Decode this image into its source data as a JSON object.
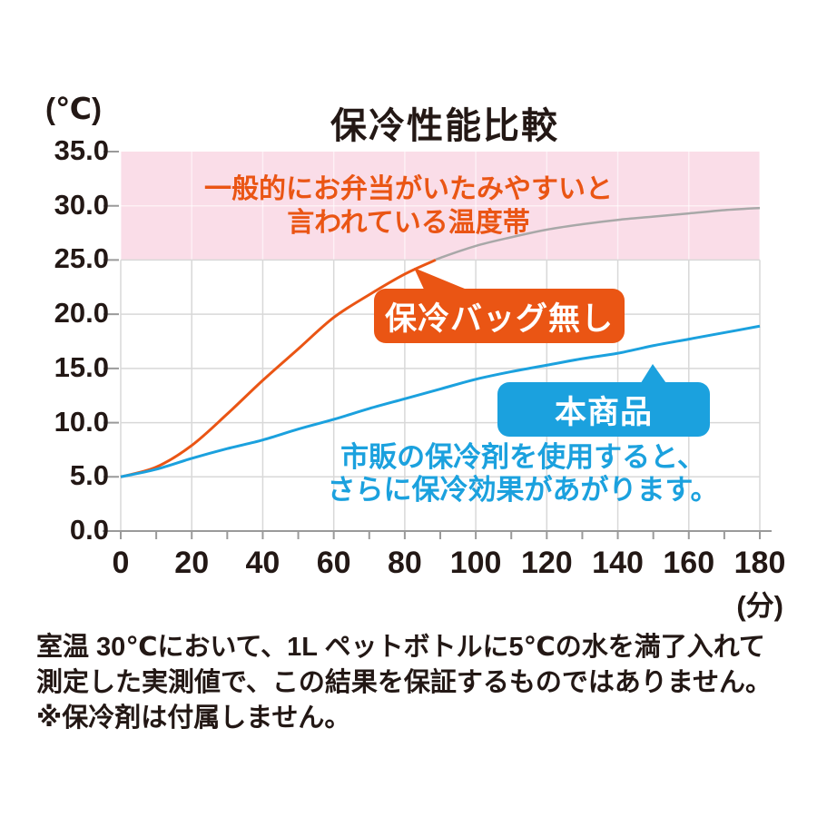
{
  "header": {
    "title": "保冷性能比較",
    "y_axis_unit": "(℃)",
    "x_axis_unit": "(分)"
  },
  "chart_data": {
    "type": "line",
    "title": "保冷性能比較",
    "xlabel": "(分)",
    "ylabel": "(℃)",
    "xlim": [
      0,
      180
    ],
    "ylim": [
      0,
      35
    ],
    "grid": true,
    "x": [
      0,
      10,
      20,
      30,
      40,
      50,
      60,
      70,
      80,
      90,
      100,
      110,
      120,
      130,
      140,
      150,
      160,
      170,
      180
    ],
    "x_tick_labels": [
      "0",
      "20",
      "40",
      "60",
      "80",
      "100",
      "120",
      "140",
      "160",
      "180"
    ],
    "x_tick_values": [
      0,
      20,
      40,
      60,
      80,
      100,
      120,
      140,
      160,
      180
    ],
    "y_tick_labels": [
      "0.0",
      "5.0",
      "10.0",
      "15.0",
      "20.0",
      "25.0",
      "30.0",
      "35.0"
    ],
    "y_tick_values": [
      0,
      5,
      10,
      15,
      20,
      25,
      30,
      35
    ],
    "series": [
      {
        "name": "保冷バッグ無し",
        "color": "#ea5514",
        "above_band_color": "#a8a8a8",
        "values": [
          5.0,
          5.9,
          7.9,
          10.8,
          13.9,
          16.8,
          19.7,
          21.8,
          23.7,
          25.2,
          26.3,
          27.1,
          27.8,
          28.3,
          28.7,
          29.0,
          29.3,
          29.6,
          29.8
        ]
      },
      {
        "name": "本商品",
        "color": "#1ba1de",
        "values": [
          5.0,
          5.7,
          6.7,
          7.6,
          8.4,
          9.4,
          10.3,
          11.3,
          12.2,
          13.1,
          14.0,
          14.7,
          15.3,
          15.9,
          16.4,
          17.1,
          17.7,
          18.3,
          18.9
        ]
      }
    ],
    "danger_band": {
      "from": 25,
      "to": 35,
      "fill": "#fadde8",
      "label_lines": [
        "一般的にお弁当がいたみやすいと",
        "言われている温度帯"
      ],
      "label_color": "#ea5514"
    }
  },
  "callouts": {
    "no_bag": {
      "label": "保冷バッグ無し",
      "bg": "#ea5514"
    },
    "product": {
      "label": "本商品",
      "bg": "#1ba1de"
    }
  },
  "annotation": {
    "color": "#1ba1de",
    "lines": [
      "市販の保冷剤を使用すると、",
      "さらに保冷効果があがります。"
    ]
  },
  "footnote": {
    "lines": [
      "室温 30℃において、1L ペットボトルに5℃の水を満了入れて",
      "測定した実測値で、この結果を保証するものではありません。",
      "※保冷剤は付属しません。"
    ]
  },
  "colors": {
    "text": "#231815",
    "grid": "#d8d8d8",
    "axis": "#9a9a9a",
    "band_inner_grid": "rgba(255,255,255,0.55)"
  }
}
